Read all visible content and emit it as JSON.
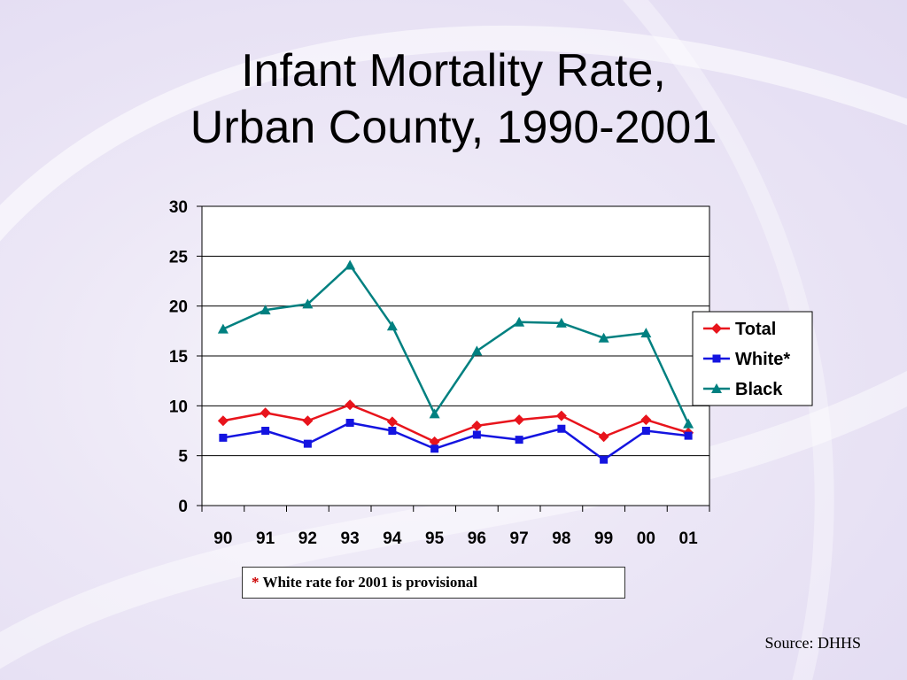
{
  "slide": {
    "title_line1": "Infant Mortality Rate,",
    "title_line2": "Urban County, 1990-2001",
    "note_star": "*",
    "note_text": " White rate for 2001 is provisional",
    "source": "Source: DHHS"
  },
  "chart_data": {
    "type": "line",
    "categories": [
      "90",
      "91",
      "92",
      "93",
      "94",
      "95",
      "96",
      "97",
      "98",
      "99",
      "00",
      "01"
    ],
    "ylim": [
      0,
      30
    ],
    "yticks": [
      0,
      5,
      10,
      15,
      20,
      25,
      30
    ],
    "grid": true,
    "legend_position": "right",
    "series": [
      {
        "name": "Total",
        "color": "#e8141c",
        "marker": "diamond",
        "values": [
          8.5,
          9.3,
          8.5,
          10.1,
          8.4,
          6.4,
          8.0,
          8.6,
          9.0,
          6.9,
          8.6,
          7.3
        ]
      },
      {
        "name": "White*",
        "color": "#1414e0",
        "marker": "square",
        "values": [
          6.8,
          7.5,
          6.2,
          8.3,
          7.5,
          5.7,
          7.1,
          6.6,
          7.7,
          4.6,
          7.5,
          7.0
        ]
      },
      {
        "name": "Black",
        "color": "#008080",
        "marker": "triangle",
        "values": [
          17.7,
          19.6,
          20.2,
          24.1,
          18.0,
          9.2,
          15.5,
          18.4,
          18.3,
          16.8,
          17.3,
          8.2
        ]
      }
    ]
  }
}
